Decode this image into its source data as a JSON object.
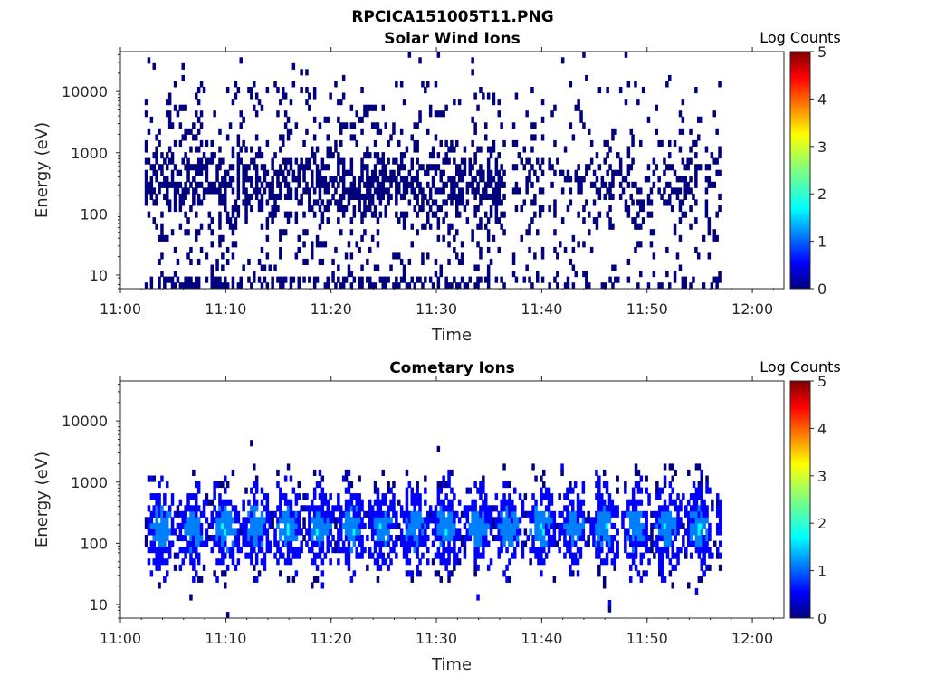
{
  "figure_title": "RPCICA151005T11.PNG",
  "colormap": [
    "#00007f",
    "#0000ff",
    "#007fff",
    "#00ffff",
    "#7fff7f",
    "#ffff00",
    "#ff7f00",
    "#ff0000",
    "#7f0000"
  ],
  "chart_data": [
    {
      "type": "heatmap",
      "title": "Solar Wind Ions",
      "xlabel": "Time",
      "ylabel": "Energy (eV)",
      "colorbar_label": "Log Counts",
      "x_range_minutes": [
        0,
        63
      ],
      "x_ticks": [
        "11:00",
        "11:10",
        "11:20",
        "11:30",
        "11:40",
        "11:50",
        "12:00"
      ],
      "y_scale": "log",
      "y_range": [
        6,
        45000
      ],
      "y_ticks": [
        "10",
        "100",
        "1000",
        "10000"
      ],
      "color_range": [
        0,
        5
      ],
      "colorbar_ticks": [
        "0",
        "1",
        "2",
        "3",
        "4",
        "5"
      ],
      "data_segments_minutes": [
        [
          2.3,
          36.5
        ],
        [
          37.2,
          40.0
        ],
        [
          40.6,
          48.5
        ],
        [
          48.5,
          57.0
        ]
      ],
      "peak_energy_eV": 300,
      "max_log_counts": 0.6,
      "pattern": "sparse"
    },
    {
      "type": "heatmap",
      "title": "Cometary Ions",
      "xlabel": "Time",
      "ylabel": "Energy (eV)",
      "colorbar_label": "Log Counts",
      "x_range_minutes": [
        0,
        63
      ],
      "x_ticks": [
        "11:00",
        "11:10",
        "11:20",
        "11:30",
        "11:40",
        "11:50",
        "12:00"
      ],
      "y_scale": "log",
      "y_range": [
        6,
        45000
      ],
      "y_ticks": [
        "10",
        "100",
        "1000",
        "10000"
      ],
      "color_range": [
        0,
        5
      ],
      "colorbar_ticks": [
        "0",
        "1",
        "2",
        "3",
        "4",
        "5"
      ],
      "data_segments_minutes": [
        [
          2.3,
          57.0
        ]
      ],
      "oscillation_period_minutes": 3.0,
      "peak_energy_eV": 180,
      "max_log_counts": 1.7,
      "pattern": "dense-periodic"
    }
  ]
}
